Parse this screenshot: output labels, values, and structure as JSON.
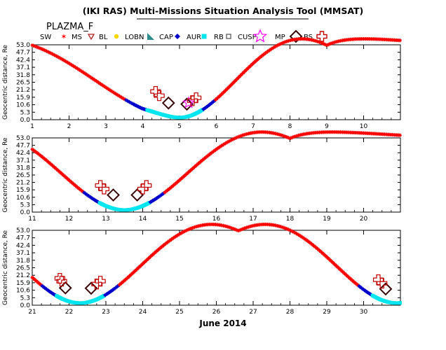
{
  "title": "(IKI RAS) Multi-Missions Situation Analysis Tool (MMSAT)",
  "mission": "PLAZMA_F",
  "xlabel": "June 2014",
  "legend": [
    {
      "label": "SW",
      "icon": "sw-star-icon",
      "color": "#ff0000"
    },
    {
      "label": "MS",
      "icon": "ms-triangle-icon",
      "color": "#b22222"
    },
    {
      "label": "BL",
      "icon": "bl-dot-icon",
      "color": "#ffd700"
    },
    {
      "label": "LOBN",
      "icon": "lobn-triangle-icon",
      "color": "#2e8b8b"
    },
    {
      "label": "CAP",
      "icon": "cap-diamond-icon",
      "color": "#0000cd"
    },
    {
      "label": "AUR",
      "icon": "aur-square-icon",
      "color": "#00e5ee"
    },
    {
      "label": "RB",
      "icon": "rb-square-icon",
      "color": "#707070"
    },
    {
      "label": "CUSP",
      "icon": "cusp-star-icon",
      "color": "#ff00ff"
    },
    {
      "label": "MP",
      "icon": "mp-diamond-icon",
      "color": "#3a0a0a"
    },
    {
      "label": "BS",
      "icon": "bs-cross-icon",
      "color": "#c00000"
    }
  ],
  "chart_data": [
    {
      "type": "scatter",
      "ylabel": "Geocentric distance, Re",
      "xlim": [
        1,
        11
      ],
      "ylim": [
        0,
        53
      ],
      "xticks": [
        "1",
        "2",
        "3",
        "4",
        "5",
        "6",
        "7",
        "8",
        "9",
        "10"
      ],
      "yticks": [
        "0.0",
        "5.3",
        "10.6",
        "15.9",
        "21.2",
        "26.5",
        "31.8",
        "37.1",
        "42.4",
        "47.7",
        "53.0"
      ],
      "perigees": [
        5.0
      ],
      "apogees": [
        -1.0,
        9.0
      ],
      "points": [
        {
          "x": 4.7,
          "y": 11.8,
          "region": "MP"
        },
        {
          "x": 5.2,
          "y": 11.0,
          "region": "MP"
        },
        {
          "x": 5.25,
          "y": 12.0,
          "region": "CUSP"
        },
        {
          "x": 4.35,
          "y": 20.0,
          "region": "BS"
        },
        {
          "x": 4.45,
          "y": 17.0,
          "region": "BS"
        },
        {
          "x": 5.35,
          "y": 13.5,
          "region": "BS"
        },
        {
          "x": 5.45,
          "y": 15.5,
          "region": "BS"
        }
      ]
    },
    {
      "type": "scatter",
      "ylabel": "Geocentric distance, Re",
      "xlim": [
        11,
        21
      ],
      "ylim": [
        0,
        53
      ],
      "xticks": [
        "11",
        "12",
        "13",
        "14",
        "15",
        "16",
        "17",
        "18",
        "19",
        "20"
      ],
      "yticks": [
        "0.0",
        "5.3",
        "10.6",
        "15.9",
        "21.2",
        "26.5",
        "31.8",
        "37.1",
        "42.4",
        "47.7",
        "53.0"
      ],
      "perigees": [
        13.5
      ],
      "apogees": [
        9.0,
        18.0,
        27.0
      ],
      "points": [
        {
          "x": 13.2,
          "y": 12.2,
          "region": "MP"
        },
        {
          "x": 13.85,
          "y": 12.2,
          "region": "MP"
        },
        {
          "x": 12.85,
          "y": 19.0,
          "region": "BS"
        },
        {
          "x": 12.95,
          "y": 16.5,
          "region": "BS"
        },
        {
          "x": 14.0,
          "y": 16.5,
          "region": "BS"
        },
        {
          "x": 14.1,
          "y": 19.0,
          "region": "BS"
        }
      ]
    },
    {
      "type": "scatter",
      "ylabel": "Geocentric distance, Re",
      "xlim": [
        21,
        31
      ],
      "ylim": [
        0,
        53
      ],
      "xticks": [
        "21",
        "22",
        "23",
        "24",
        "25",
        "26",
        "27",
        "28",
        "29",
        "30"
      ],
      "yticks": [
        "0.0",
        "5.3",
        "10.6",
        "15.9",
        "21.2",
        "26.5",
        "31.8",
        "37.1",
        "42.4",
        "47.7",
        "53.0"
      ],
      "perigees": [
        22.3,
        30.9
      ],
      "apogees": [
        18.0,
        26.6,
        35.2
      ],
      "points": [
        {
          "x": 21.9,
          "y": 12.2,
          "region": "MP"
        },
        {
          "x": 22.6,
          "y": 12.0,
          "region": "MP"
        },
        {
          "x": 30.6,
          "y": 11.5,
          "region": "MP"
        },
        {
          "x": 21.8,
          "y": 17.0,
          "region": "BS"
        },
        {
          "x": 21.75,
          "y": 19.0,
          "region": "BS"
        },
        {
          "x": 22.75,
          "y": 15.0,
          "region": "BS"
        },
        {
          "x": 22.85,
          "y": 17.0,
          "region": "BS"
        },
        {
          "x": 30.4,
          "y": 18.0,
          "region": "BS"
        },
        {
          "x": 30.5,
          "y": 15.5,
          "region": "BS"
        }
      ]
    }
  ]
}
